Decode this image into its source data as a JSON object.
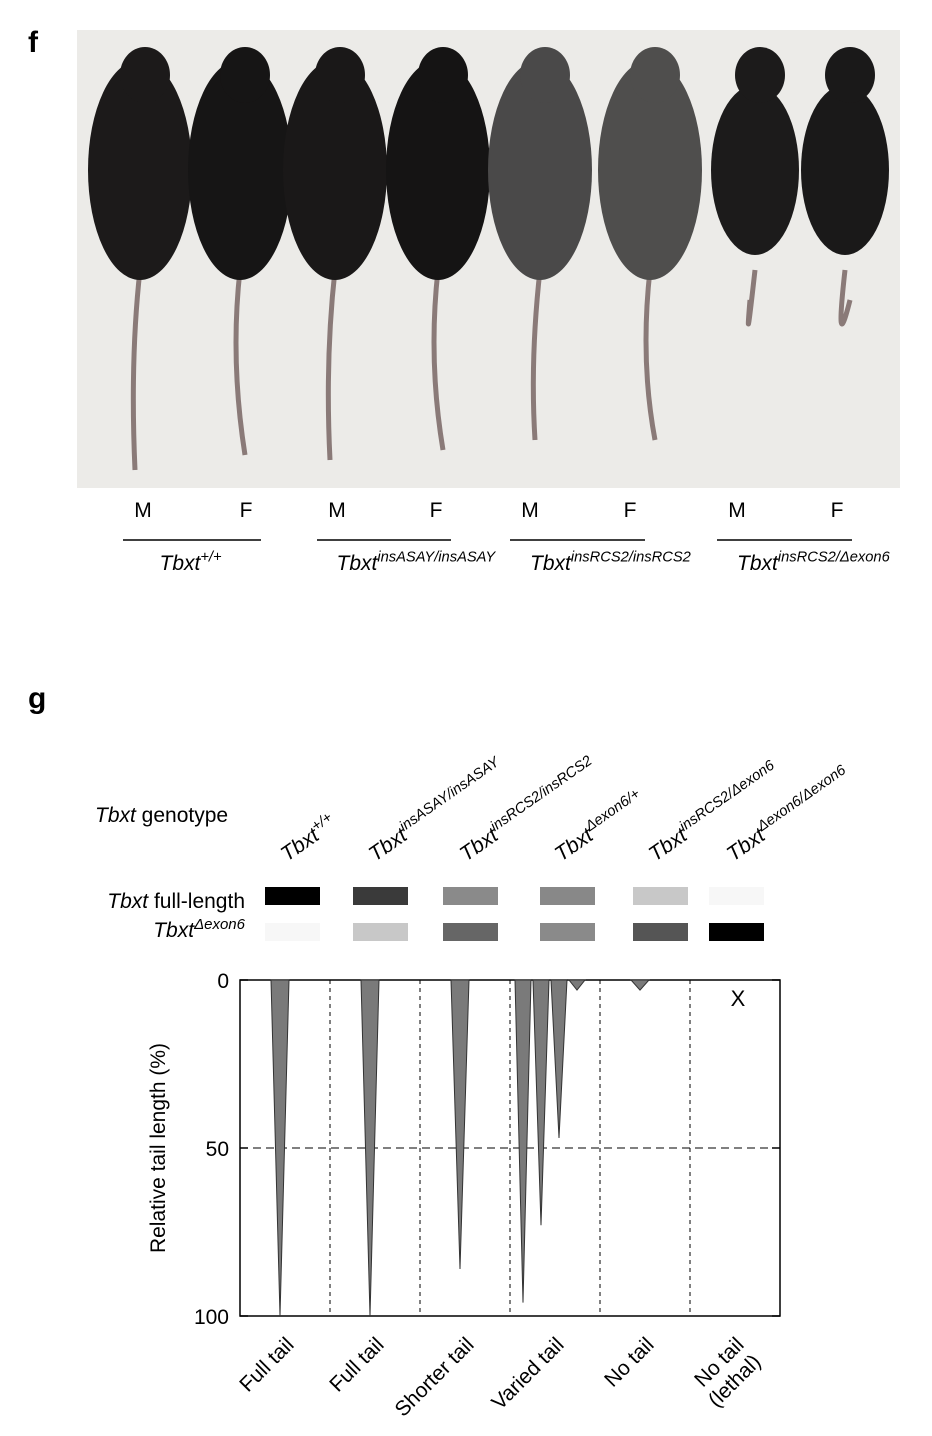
{
  "panel_f": {
    "label": "f",
    "pairs": [
      [
        "M",
        "F"
      ],
      [
        "M",
        "F"
      ],
      [
        "M",
        "F"
      ],
      [
        "M",
        "F"
      ]
    ],
    "genotypes": [
      {
        "base": "Tbxt",
        "sup": "+/+"
      },
      {
        "base": "Tbxt",
        "sup": "insASAY/insASAY"
      },
      {
        "base": "Tbxt",
        "sup": "insRCS2/insRCS2"
      },
      {
        "base": "Tbxt",
        "sup": "insRCS2/Δexon6"
      }
    ]
  },
  "panel_g": {
    "label": "g",
    "header": {
      "italic": "Tbxt",
      "rest": " genotype"
    },
    "genotypes": [
      {
        "base": "Tbxt",
        "sup": "+/+"
      },
      {
        "base": "Tbxt",
        "sup": "insASAY/insASAY"
      },
      {
        "base": "Tbxt",
        "sup": "insRCS2/insRCS2"
      },
      {
        "base": "Tbxt",
        "sup": "Δexon6/+"
      },
      {
        "base": "Tbxt",
        "sup": "insRCS2/Δexon6"
      },
      {
        "base": "Tbxt",
        "sup": "Δexon6/Δexon6"
      }
    ],
    "rows": [
      {
        "italic": "Tbxt",
        "rest": " full-length",
        "colors": [
          "#000000",
          "#3a3a3a",
          "#8a8a8a",
          "#888888",
          "#c8c8c8",
          "#f7f7f7"
        ]
      },
      {
        "italic": "Tbxt",
        "sup": "Δexon6",
        "colors": [
          "#f7f7f7",
          "#c8c8c8",
          "#666666",
          "#8a8a8a",
          "#555555",
          "#000000"
        ]
      }
    ],
    "chart_data": {
      "type": "spike",
      "ylabel": "Relative tail length (%)",
      "ylim": [
        0,
        100
      ],
      "yticks": [
        0,
        50,
        100
      ],
      "grid": true,
      "color": "#7a7a7a",
      "categories": [
        [
          "Full tail"
        ],
        [
          "Full tail"
        ],
        [
          "Shorter tail"
        ],
        [
          "Varied tail"
        ],
        [
          "No tail"
        ],
        [
          "No tail",
          "(lethal)"
        ]
      ],
      "values": [
        [
          100
        ],
        [
          100
        ],
        [
          86
        ],
        [
          96,
          73,
          47,
          3
        ],
        [
          3
        ],
        []
      ],
      "lethal_marker": "X",
      "lethal_color": "#e0452a"
    }
  }
}
